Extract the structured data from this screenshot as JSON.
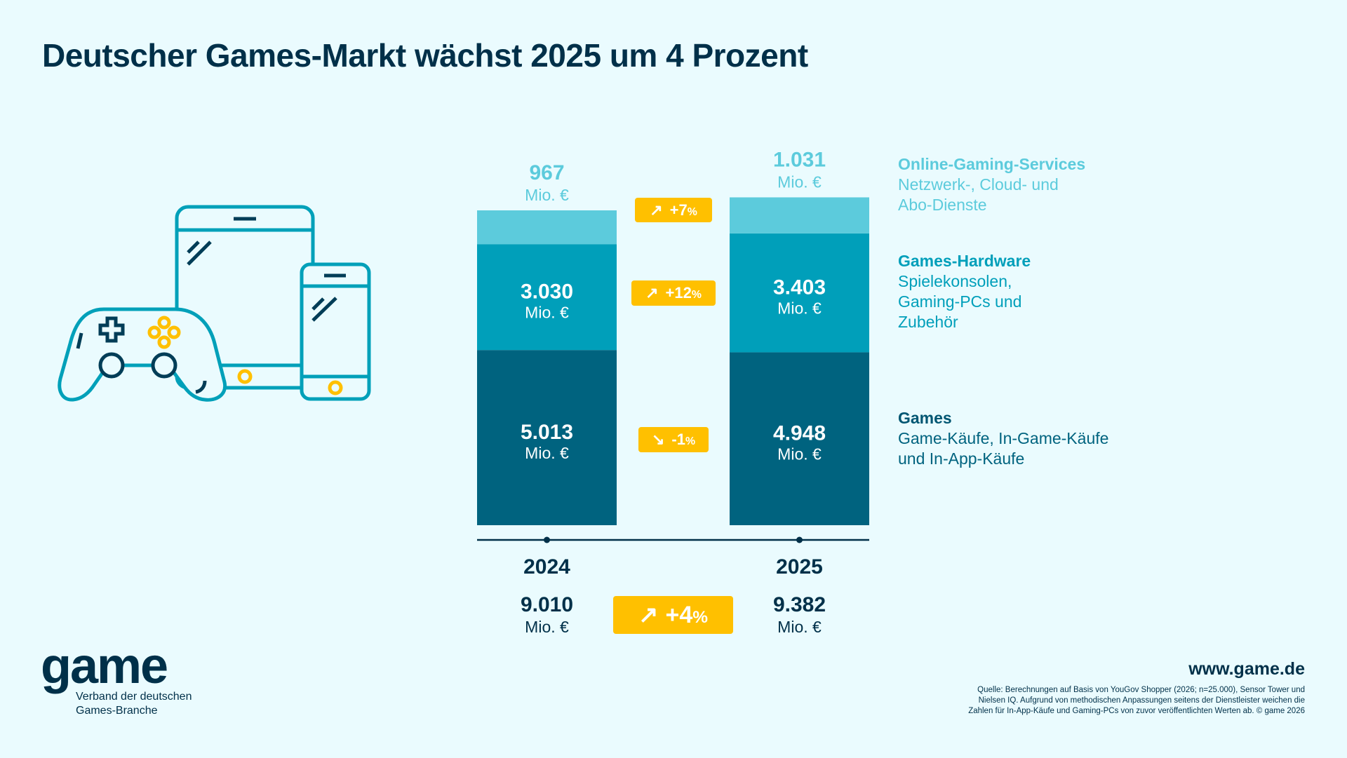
{
  "title": "Deutscher Games-Markt wächst 2025 um 4 Prozent",
  "colors": {
    "games": "#00637f",
    "hardware": "#009fba",
    "online": "#5ccbdc",
    "badge": "#ffc000",
    "text": "#003049",
    "background": "#eafbfe"
  },
  "chart_data": {
    "type": "bar",
    "stacked": true,
    "categories": [
      "2024",
      "2025"
    ],
    "unit": "Mio. €",
    "series": [
      {
        "name": "Games",
        "values": [
          5013,
          4948
        ],
        "labels": [
          "5.013",
          "4.948"
        ],
        "change": "-1%",
        "direction": "down"
      },
      {
        "name": "Games-Hardware",
        "values": [
          3030,
          3403
        ],
        "labels": [
          "3.030",
          "3.403"
        ],
        "change": "+12%",
        "direction": "up"
      },
      {
        "name": "Online-Gaming-Services",
        "values": [
          967,
          1031
        ],
        "labels": [
          "967",
          "1.031"
        ],
        "change": "+7%",
        "direction": "up"
      }
    ],
    "totals": {
      "values": [
        9010,
        9382
      ],
      "labels": [
        "9.010",
        "9.382"
      ],
      "change": "+4%",
      "direction": "up"
    }
  },
  "legend": [
    {
      "title": "Online-Gaming-Services",
      "lines": [
        "Netzwerk-, Cloud- und",
        "Abo-Dienste"
      ]
    },
    {
      "title": "Games-Hardware",
      "lines": [
        "Spielekonsolen,",
        "Gaming-PCs und",
        "Zubehör"
      ]
    },
    {
      "title": "Games",
      "lines": [
        "Game-Käufe, In-Game-Käufe",
        "und In-App-Käufe"
      ]
    }
  ],
  "illustration_icons": [
    "gamepad-icon",
    "tablet-icon",
    "smartphone-icon"
  ],
  "logo": {
    "wordmark": "game",
    "subtitle_lines": [
      "Verband der deutschen",
      "Games-Branche"
    ]
  },
  "website": "www.game.de",
  "source_lines": [
    "Quelle: Berechnungen auf Basis von YouGov Shopper (2026; n=25.000), Sensor Tower und",
    "Nielsen IQ. Aufgrund von methodischen Anpassungen seitens der Dienstleister weichen die",
    "Zahlen für In-App-Käufe und Gaming-PCs von zuvor veröffentlichten Werten ab. © game 2026"
  ]
}
